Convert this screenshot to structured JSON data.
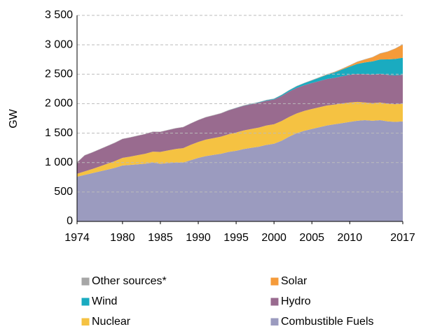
{
  "chart_data": {
    "type": "stacked_area",
    "ylabel": "GW",
    "x": [
      1974,
      1975,
      1976,
      1977,
      1978,
      1979,
      1980,
      1981,
      1982,
      1983,
      1984,
      1985,
      1986,
      1987,
      1988,
      1989,
      1990,
      1991,
      1992,
      1993,
      1994,
      1995,
      1996,
      1997,
      1998,
      1999,
      2000,
      2001,
      2002,
      2003,
      2004,
      2005,
      2006,
      2007,
      2008,
      2009,
      2010,
      2011,
      2012,
      2013,
      2014,
      2015,
      2016,
      2017
    ],
    "xlim": [
      1974,
      2017
    ],
    "xticks": [
      1974,
      1980,
      1985,
      1990,
      1995,
      2000,
      2005,
      2010,
      2017
    ],
    "ylim": [
      0,
      3500
    ],
    "yticks": [
      0,
      500,
      {
        "value": 1000,
        "label": "1 000"
      },
      {
        "value": 1500,
        "label": "1 500"
      },
      {
        "value": 2000,
        "label": "2 000"
      },
      {
        "value": 2500,
        "label": "2 500"
      },
      {
        "value": 3000,
        "label": "3 000"
      },
      {
        "value": 3500,
        "label": "3 500"
      }
    ],
    "grid": true,
    "legend": "bottom",
    "series": [
      {
        "name": "Other sources*",
        "color": "#a6a6a6",
        "values": [
          5,
          5,
          5,
          5,
          5,
          5,
          5,
          5,
          5,
          5,
          5,
          5,
          5,
          5,
          5,
          5,
          5,
          5,
          5,
          5,
          5,
          5,
          5,
          5,
          5,
          5,
          5,
          5,
          5,
          5,
          5,
          5,
          5,
          5,
          5,
          5,
          5,
          5,
          5,
          5,
          5,
          5,
          5,
          5
        ]
      },
      {
        "name": "Solar",
        "color": "#f59b3a",
        "values": [
          0,
          0,
          0,
          0,
          0,
          0,
          0,
          0,
          0,
          0,
          0,
          0,
          0,
          0,
          0,
          0,
          0,
          0,
          0,
          0,
          0,
          0,
          0,
          0,
          0,
          0,
          0,
          0,
          0,
          0,
          0,
          2,
          3,
          5,
          8,
          12,
          20,
          35,
          50,
          70,
          100,
          130,
          175,
          225
        ]
      },
      {
        "name": "Wind",
        "color": "#1aabc0",
        "values": [
          0,
          0,
          0,
          0,
          0,
          0,
          0,
          0,
          0,
          0,
          0,
          0,
          0,
          0,
          0,
          0,
          0,
          0,
          0,
          0,
          2,
          3,
          4,
          5,
          7,
          9,
          12,
          17,
          22,
          28,
          35,
          45,
          58,
          72,
          90,
          115,
          140,
          170,
          200,
          225,
          245,
          265,
          280,
          290
        ]
      },
      {
        "name": "Hydro",
        "color": "#996b8f",
        "values": [
          190,
          270,
          280,
          290,
          300,
          310,
          320,
          325,
          330,
          333,
          336,
          340,
          345,
          350,
          355,
          362,
          370,
          378,
          386,
          395,
          405,
          415,
          418,
          420,
          422,
          420,
          420,
          425,
          430,
          433,
          436,
          440,
          445,
          450,
          455,
          460,
          470,
          475,
          480,
          483,
          486,
          488,
          490,
          490
        ]
      },
      {
        "name": "Nuclear",
        "color": "#f5c242",
        "values": [
          50,
          60,
          70,
          85,
          100,
          115,
          130,
          140,
          155,
          170,
          185,
          200,
          215,
          230,
          245,
          260,
          270,
          280,
          285,
          290,
          300,
          310,
          315,
          320,
          325,
          330,
          330,
          335,
          335,
          335,
          338,
          340,
          340,
          340,
          335,
          335,
          330,
          320,
          300,
          300,
          300,
          300,
          300,
          300
        ]
      },
      {
        "name": "Combustible Fuels",
        "color": "#9b9bbf",
        "values": [
          760,
          790,
          820,
          850,
          880,
          910,
          950,
          960,
          970,
          980,
          1000,
          980,
          990,
          1000,
          1000,
          1040,
          1080,
          1110,
          1130,
          1150,
          1180,
          1200,
          1230,
          1250,
          1270,
          1300,
          1320,
          1370,
          1440,
          1500,
          1540,
          1570,
          1600,
          1630,
          1650,
          1670,
          1690,
          1710,
          1720,
          1710,
          1720,
          1700,
          1690,
          1700
        ]
      }
    ]
  }
}
